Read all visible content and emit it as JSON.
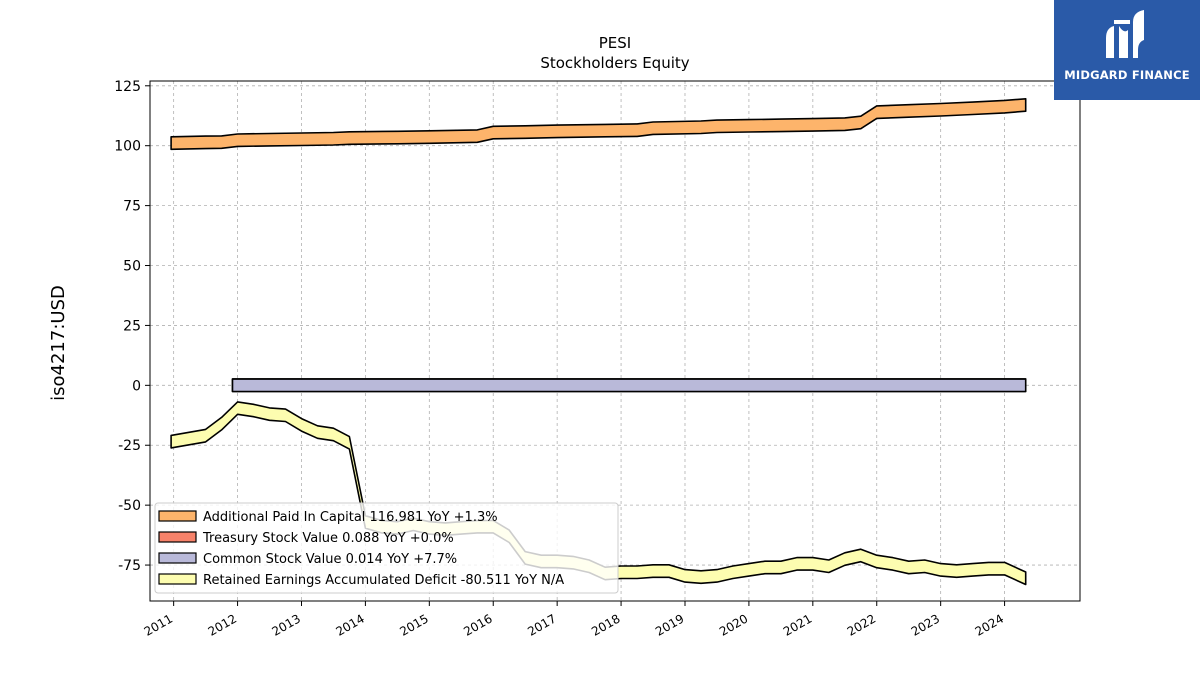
{
  "watermark": {
    "text": "MIDGARD FINANCE",
    "background": "#2a5aa8"
  },
  "chart_data": {
    "type": "area",
    "title": "PESI",
    "subtitle": "Stockholders  Equity",
    "ylabel": "iso4217:USD",
    "xlabel": "",
    "ylim": [
      -90,
      127
    ],
    "xlim": [
      2010.63,
      2025.18
    ],
    "yticks": [
      125,
      100,
      75,
      50,
      25,
      0,
      -25,
      -50,
      -75
    ],
    "xticks": [
      "2011",
      "2012",
      "2013",
      "2014",
      "2015",
      "2016",
      "2017",
      "2018",
      "2019",
      "2020",
      "2021",
      "2022",
      "2023",
      "2024"
    ],
    "grid": true,
    "legend_position": "lower-left",
    "series": [
      {
        "name": "Additional Paid In Capital  116.981 YoY +1.3%",
        "color": "#fdb46b",
        "x": [
          2010.96,
          2011.5,
          2011.75,
          2012.0,
          2012.5,
          2013.0,
          2013.5,
          2013.75,
          2014.5,
          2015.0,
          2015.75,
          2016.0,
          2016.5,
          2017.0,
          2017.75,
          2018.25,
          2018.5,
          2019.25,
          2019.5,
          2020.0,
          2020.5,
          2021.0,
          2021.5,
          2021.75,
          2022.0,
          2022.5,
          2023.0,
          2023.5,
          2024.0,
          2024.33
        ],
        "values": [
          101.1,
          101.4,
          101.5,
          102.3,
          102.5,
          102.7,
          102.9,
          103.2,
          103.4,
          103.6,
          104.0,
          105.5,
          105.7,
          106.0,
          106.3,
          106.5,
          107.3,
          107.7,
          108.1,
          108.3,
          108.5,
          108.7,
          109.0,
          109.7,
          114.0,
          114.5,
          115.0,
          115.6,
          116.3,
          116.98
        ]
      },
      {
        "name": "Treasury Stock Value  0.088 YoY +0.0%",
        "color": "#f7826a",
        "x": [
          2011.92,
          2024.33
        ],
        "values": [
          0.088,
          0.088
        ]
      },
      {
        "name": "Common Stock Value  0.014 YoY +7.7%",
        "color": "#b9b9d9",
        "x": [
          2011.92,
          2024.33
        ],
        "values": [
          0.014,
          0.014
        ]
      },
      {
        "name": "Retained Earnings Accumulated Deficit  -80.511 YoY N/A",
        "color": "#fdfdb0",
        "x": [
          2010.96,
          2011.5,
          2011.75,
          2012.0,
          2012.25,
          2012.5,
          2012.75,
          2013.0,
          2013.25,
          2013.5,
          2013.75,
          2014.0,
          2014.25,
          2014.5,
          2014.75,
          2015.0,
          2015.25,
          2015.5,
          2015.75,
          2016.0,
          2016.25,
          2016.5,
          2016.75,
          2017.0,
          2017.25,
          2017.5,
          2017.75,
          2018.0,
          2018.25,
          2018.5,
          2018.75,
          2019.0,
          2019.25,
          2019.5,
          2019.75,
          2020.0,
          2020.25,
          2020.5,
          2020.75,
          2021.0,
          2021.25,
          2021.5,
          2021.75,
          2022.0,
          2022.25,
          2022.5,
          2022.75,
          2023.0,
          2023.25,
          2023.5,
          2023.75,
          2024.0,
          2024.33
        ],
        "values": [
          -23.5,
          -21.0,
          -16.0,
          -9.5,
          -10.5,
          -12.0,
          -12.5,
          -16.5,
          -19.5,
          -20.5,
          -24.0,
          -57.0,
          -59.0,
          -59.5,
          -58.0,
          -59.5,
          -60.0,
          -59.5,
          -59.0,
          -59.0,
          -63.0,
          -72.0,
          -73.5,
          -73.5,
          -74.0,
          -75.5,
          -78.5,
          -78.0,
          -78.0,
          -77.5,
          -77.5,
          -79.5,
          -80.0,
          -79.5,
          -78.0,
          -77.0,
          -76.0,
          -76.0,
          -74.5,
          -74.5,
          -75.5,
          -72.5,
          -71.0,
          -73.5,
          -74.5,
          -76.0,
          -75.5,
          -77.0,
          -77.5,
          -77.0,
          -76.5,
          -76.5,
          -80.51
        ]
      }
    ]
  }
}
